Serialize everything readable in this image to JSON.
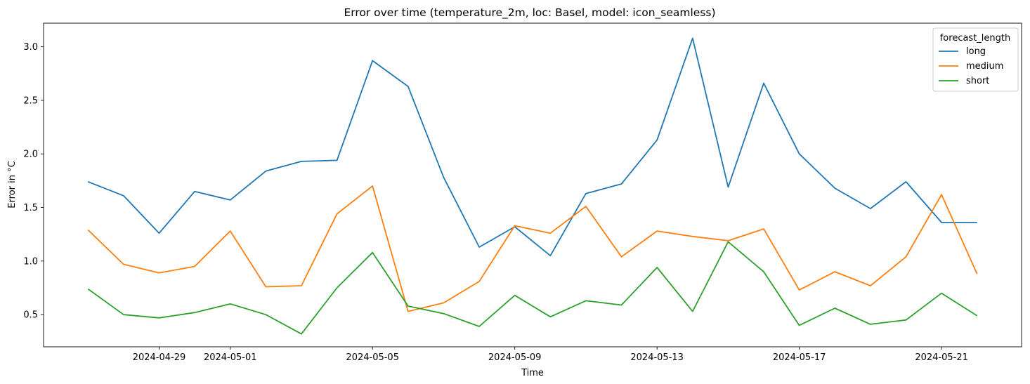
{
  "chart_data": {
    "type": "line",
    "title": "Error over time (temperature_2m, loc: Basel, model: icon_seamless)",
    "xlabel": "Time",
    "ylabel": "Error in °C",
    "x": [
      "2024-04-27",
      "2024-04-28",
      "2024-04-29",
      "2024-04-30",
      "2024-05-01",
      "2024-05-02",
      "2024-05-03",
      "2024-05-04",
      "2024-05-05",
      "2024-05-06",
      "2024-05-07",
      "2024-05-08",
      "2024-05-09",
      "2024-05-10",
      "2024-05-11",
      "2024-05-12",
      "2024-05-13",
      "2024-05-14",
      "2024-05-15",
      "2024-05-16",
      "2024-05-17",
      "2024-05-18",
      "2024-05-19",
      "2024-05-20",
      "2024-05-21",
      "2024-05-22"
    ],
    "x_ticks": [
      "2024-04-29",
      "2024-05-01",
      "2024-05-05",
      "2024-05-09",
      "2024-05-13",
      "2024-05-17",
      "2024-05-21"
    ],
    "xlim": [
      "2024-04-25T18:00",
      "2024-05-23T06:00"
    ],
    "y_ticks": [
      0.5,
      1.0,
      1.5,
      2.0,
      2.5,
      3.0
    ],
    "y_tick_labels": [
      "0.5",
      "1.0",
      "1.5",
      "2.0",
      "2.5",
      "3.0"
    ],
    "ylim": [
      0.2,
      3.22
    ],
    "grid": false,
    "legend": {
      "title": "forecast_length",
      "placement": "top-right"
    },
    "series": [
      {
        "name": "long",
        "color": "#1f77b4",
        "values": [
          1.74,
          1.61,
          1.26,
          1.65,
          1.57,
          1.84,
          1.93,
          1.94,
          2.87,
          2.63,
          1.78,
          1.13,
          1.32,
          1.05,
          1.63,
          1.72,
          2.13,
          3.08,
          1.69,
          2.66,
          2.0,
          1.68,
          1.49,
          1.74,
          1.36,
          1.36
        ]
      },
      {
        "name": "medium",
        "color": "#ff7f0e",
        "values": [
          1.29,
          0.97,
          0.89,
          0.95,
          1.28,
          0.76,
          0.77,
          1.44,
          1.7,
          0.53,
          0.61,
          0.81,
          1.33,
          1.26,
          1.51,
          1.04,
          1.28,
          1.23,
          1.19,
          1.3,
          0.73,
          0.9,
          0.77,
          1.04,
          1.62,
          0.88
        ]
      },
      {
        "name": "short",
        "color": "#2ca02c",
        "values": [
          0.74,
          0.5,
          0.47,
          0.52,
          0.6,
          0.5,
          0.32,
          0.75,
          1.08,
          0.58,
          0.51,
          0.39,
          0.68,
          0.48,
          0.63,
          0.59,
          0.94,
          0.53,
          1.18,
          0.9,
          0.4,
          0.56,
          0.41,
          0.45,
          0.7,
          0.49
        ]
      }
    ]
  }
}
